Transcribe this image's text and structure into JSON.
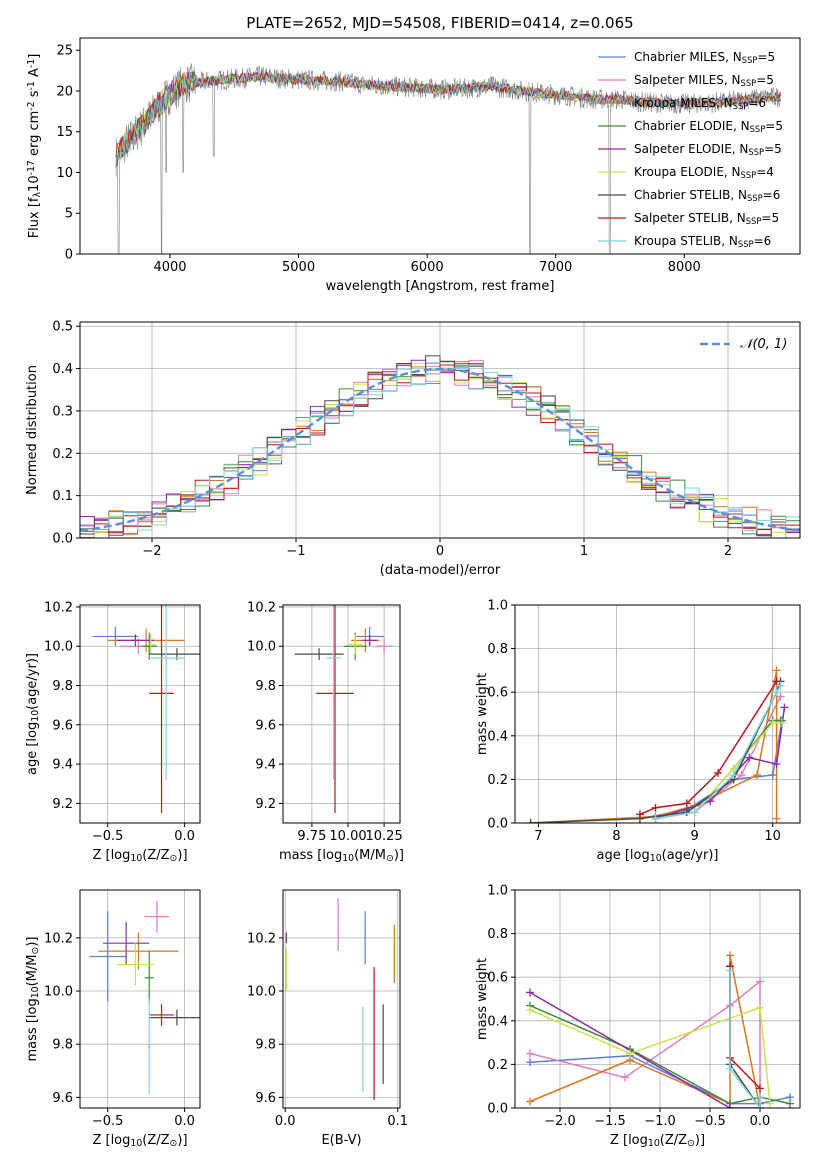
{
  "figure_title": "PLATE=2652, MJD=54508, FIBERID=0414, z=0.065",
  "colors": {
    "chabrier_miles": "#5b7fd6",
    "salpeter_miles": "#e37cbd",
    "kroupa_miles": "#d9771f",
    "chabrier_elodie": "#3d8a3d",
    "salpeter_elodie": "#8e2cae",
    "kroupa_elodie": "#c7e34a",
    "chabrier_stelib": "#4a4a4a",
    "salpeter_stelib": "#c0161c",
    "kroupa_stelib": "#7fd6e0",
    "data": "#808080",
    "normal": "#5b8fd6"
  },
  "chart_data": [
    {
      "id": "spectrum",
      "type": "line",
      "title": "PLATE=2652, MJD=54508, FIBERID=0414, z=0.065",
      "xlabel": "wavelength [Angstrom, rest frame]",
      "ylabel": "Flux [f$_\\lambda$10$^{-17}$ erg cm$^{-2}$ s$^{-1}$ A$^{-1}$]",
      "xlim": [
        3300,
        8900
      ],
      "ylim": [
        0,
        26.5
      ],
      "xticks": [
        4000,
        5000,
        6000,
        7000,
        8000
      ],
      "yticks": [
        0,
        5,
        10,
        15,
        20,
        25
      ],
      "grid": false,
      "legend_position": "top-right",
      "legend": [
        {
          "key": "chabrier_miles",
          "label": "Chabrier MILES, N",
          "sub": "SSP",
          "tail": "=5"
        },
        {
          "key": "salpeter_miles",
          "label": "Salpeter MILES, N",
          "sub": "SSP",
          "tail": "=5"
        },
        {
          "key": "kroupa_miles",
          "label": "Kroupa MILES, N",
          "sub": "SSP",
          "tail": "=6"
        },
        {
          "key": "chabrier_elodie",
          "label": "Chabrier ELODIE, N",
          "sub": "SSP",
          "tail": "=5"
        },
        {
          "key": "salpeter_elodie",
          "label": "Salpeter ELODIE, N",
          "sub": "SSP",
          "tail": "=5"
        },
        {
          "key": "kroupa_elodie",
          "label": "Kroupa ELODIE, N",
          "sub": "SSP",
          "tail": "=4"
        },
        {
          "key": "chabrier_stelib",
          "label": "Chabrier STELIB, N",
          "sub": "SSP",
          "tail": "=6"
        },
        {
          "key": "salpeter_stelib",
          "label": "Salpeter STELIB, N",
          "sub": "SSP",
          "tail": "=5"
        },
        {
          "key": "kroupa_stelib",
          "label": "Kroupa STELIB, N",
          "sub": "SSP",
          "tail": "=6"
        }
      ],
      "continuum": [
        [
          3580,
          12
        ],
        [
          3650,
          13.5
        ],
        [
          3750,
          15
        ],
        [
          3850,
          17
        ],
        [
          3950,
          19
        ],
        [
          4100,
          20.8
        ],
        [
          4300,
          21.2
        ],
        [
          4500,
          21.5
        ],
        [
          4700,
          21.8
        ],
        [
          4900,
          21.5
        ],
        [
          5100,
          21.3
        ],
        [
          5300,
          21.2
        ],
        [
          5500,
          20.8
        ],
        [
          5700,
          20.6
        ],
        [
          5900,
          20.4
        ],
        [
          6100,
          20.2
        ],
        [
          6300,
          20.3
        ],
        [
          6500,
          20.6
        ],
        [
          6700,
          20.1
        ],
        [
          6900,
          19.7
        ],
        [
          7100,
          19.4
        ],
        [
          7300,
          19.0
        ],
        [
          7500,
          19.0
        ],
        [
          7700,
          18.6
        ],
        [
          8000,
          18.4
        ],
        [
          8300,
          18.6
        ],
        [
          8500,
          19.0
        ],
        [
          8750,
          19.3
        ]
      ],
      "dips": [
        [
          3600,
          0
        ],
        [
          3935,
          0
        ],
        [
          3970,
          10
        ],
        [
          4102,
          10
        ],
        [
          4340,
          12
        ],
        [
          6800,
          0
        ],
        [
          7420,
          0
        ]
      ]
    },
    {
      "id": "residuals",
      "type": "histogram",
      "xlabel": "(data-model)/error",
      "ylabel": "Normed distribution",
      "xlim": [
        -2.5,
        2.5
      ],
      "ylim": [
        0,
        0.51
      ],
      "xticks": [
        -2,
        -1,
        0,
        1,
        2
      ],
      "yticks": [
        0.0,
        0.1,
        0.2,
        0.3,
        0.4,
        0.5
      ],
      "grid": true,
      "legend_position": "top-right",
      "normal_label": "𝒩(0, 1)",
      "bin_width": 0.1
    },
    {
      "id": "age_vs_z",
      "type": "scatter",
      "xlabel": "Z [log$_{10}$(Z/Z$_\\odot$)]",
      "ylabel": "age  [log$_{10}$(age/yr)]",
      "xlim": [
        -0.68,
        0.1
      ],
      "ylim": [
        9.1,
        10.21
      ],
      "xticks": [
        -0.5,
        0.0
      ],
      "yticks": [
        9.2,
        9.4,
        9.6,
        9.8,
        10.0,
        10.2
      ],
      "grid": true,
      "points": [
        {
          "key": "chabrier_miles",
          "x": -0.45,
          "y": 10.05,
          "xe": 0.15,
          "ye": 0.05
        },
        {
          "key": "salpeter_miles",
          "x": -0.3,
          "y": 10.0,
          "xe": 0.12,
          "ye": 0.04
        },
        {
          "key": "kroupa_miles",
          "x": -0.25,
          "y": 10.03,
          "xe": 0.25,
          "ye": 0.06
        },
        {
          "key": "chabrier_elodie",
          "x": -0.23,
          "y": 10.0,
          "xe": 0.05,
          "ye": 0.07
        },
        {
          "key": "salpeter_elodie",
          "x": -0.32,
          "y": 10.03,
          "xe": 0.12,
          "ye": 0.03
        },
        {
          "key": "kroupa_elodie",
          "x": -0.22,
          "y": 10.01,
          "xe": 0.03,
          "ye": 0.05
        },
        {
          "key": "chabrier_stelib",
          "x": -0.05,
          "y": 9.96,
          "xe": 0.18,
          "ye": 0.03
        },
        {
          "key": "salpeter_stelib",
          "x": -0.15,
          "y": 9.76,
          "xe": 0.08,
          "ye": 0.61
        },
        {
          "key": "kroupa_stelib",
          "x": -0.12,
          "y": 9.94,
          "xe": 0.12,
          "ye": 0.62
        }
      ]
    },
    {
      "id": "age_vs_mass",
      "type": "scatter",
      "xlabel": "mass [log$_{10}$(M/M$_\\odot$)]",
      "ylabel": "",
      "xlim": [
        9.55,
        10.36
      ],
      "ylim": [
        9.1,
        10.21
      ],
      "xticks": [
        9.75,
        10.0,
        10.25
      ],
      "xticklabels": [
        "9.75",
        "10.00",
        "10.25"
      ],
      "yticks": [
        9.2,
        9.4,
        9.6,
        9.8,
        10.0,
        10.2
      ],
      "grid": true,
      "points": [
        {
          "key": "chabrier_miles",
          "x": 10.15,
          "y": 10.05,
          "xe": 0.1,
          "ye": 0.05
        },
        {
          "key": "salpeter_miles",
          "x": 10.25,
          "y": 10.0,
          "xe": 0.06,
          "ye": 0.04
        },
        {
          "key": "kroupa_miles",
          "x": 10.12,
          "y": 10.03,
          "xe": 0.1,
          "ye": 0.06
        },
        {
          "key": "chabrier_elodie",
          "x": 10.05,
          "y": 10.0,
          "xe": 0.08,
          "ye": 0.07
        },
        {
          "key": "salpeter_elodie",
          "x": 10.15,
          "y": 10.03,
          "xe": 0.05,
          "ye": 0.03
        },
        {
          "key": "kroupa_elodie",
          "x": 10.05,
          "y": 10.01,
          "xe": 0.05,
          "ye": 0.05
        },
        {
          "key": "chabrier_stelib",
          "x": 9.8,
          "y": 9.96,
          "xe": 0.17,
          "ye": 0.03
        },
        {
          "key": "salpeter_stelib",
          "x": 9.91,
          "y": 9.76,
          "xe": 0.13,
          "ye": 0.61
        },
        {
          "key": "kroupa_stelib",
          "x": 9.9,
          "y": 9.94,
          "xe": 0.05,
          "ye": 0.62
        }
      ]
    },
    {
      "id": "mass_weight_vs_age",
      "type": "line",
      "xlabel": "age  [log$_{10}$(age/yr)]",
      "ylabel": "mass weight",
      "xlim": [
        6.7,
        10.35
      ],
      "ylim": [
        0,
        1.0
      ],
      "xticks": [
        7,
        8,
        9,
        10
      ],
      "yticks": [
        0.0,
        0.2,
        0.4,
        0.6,
        0.8,
        1.0
      ],
      "grid": true,
      "series": [
        {
          "key": "chabrier_miles",
          "x": [
            8.3,
            8.9,
            9.5,
            10.0,
            10.12
          ],
          "y": [
            0.02,
            0.06,
            0.2,
            0.22,
            0.47
          ]
        },
        {
          "key": "salpeter_miles",
          "x": [
            8.5,
            9.0,
            9.6,
            10.1
          ],
          "y": [
            0.02,
            0.05,
            0.22,
            0.58
          ]
        },
        {
          "key": "kroupa_miles",
          "x": [
            6.9,
            8.5,
            9.0,
            9.8,
            10.05,
            10.05
          ],
          "y": [
            0.0,
            0.03,
            0.08,
            0.22,
            0.7,
            0.02
          ]
        },
        {
          "key": "chabrier_elodie",
          "x": [
            8.5,
            9.0,
            9.5,
            10.0,
            10.1
          ],
          "y": [
            0.02,
            0.05,
            0.25,
            0.47,
            0.47
          ]
        },
        {
          "key": "salpeter_elodie",
          "x": [
            8.5,
            9.2,
            9.7,
            10.05,
            10.15
          ],
          "y": [
            0.02,
            0.1,
            0.3,
            0.27,
            0.53
          ]
        },
        {
          "key": "kroupa_elodie",
          "x": [
            8.5,
            9.0,
            9.5,
            10.0,
            10.12
          ],
          "y": [
            0.02,
            0.05,
            0.25,
            0.46,
            0.46
          ]
        },
        {
          "key": "chabrier_stelib",
          "x": [
            6.9,
            8.3,
            8.9,
            9.5,
            10.05,
            10.1
          ],
          "y": [
            0.0,
            0.02,
            0.05,
            0.2,
            0.6,
            0.65
          ]
        },
        {
          "key": "salpeter_stelib",
          "x": [
            8.3,
            8.5,
            8.9,
            9.3,
            10.05
          ],
          "y": [
            0.04,
            0.07,
            0.09,
            0.23,
            0.65
          ]
        },
        {
          "key": "kroupa_stelib",
          "x": [
            8.5,
            9.0,
            9.5,
            10.05,
            10.1
          ],
          "y": [
            0.02,
            0.05,
            0.22,
            0.6,
            0.63
          ]
        }
      ]
    },
    {
      "id": "mass_vs_z",
      "type": "scatter",
      "xlabel": "Z [log$_{10}$(Z/Z$_\\odot$)]",
      "ylabel": "mass [log$_{10}$(M/M$_\\odot$)]",
      "xlim": [
        -0.68,
        0.1
      ],
      "ylim": [
        9.56,
        10.38
      ],
      "xticks": [
        -0.5,
        0.0
      ],
      "yticks": [
        9.6,
        9.8,
        10.0,
        10.2
      ],
      "grid": true,
      "points": [
        {
          "key": "chabrier_miles",
          "x": -0.5,
          "y": 10.13,
          "xe": 0.12,
          "ye": 0.17
        },
        {
          "key": "salpeter_miles",
          "x": -0.18,
          "y": 10.28,
          "xe": 0.08,
          "ye": 0.06
        },
        {
          "key": "kroupa_miles",
          "x": -0.3,
          "y": 10.15,
          "xe": 0.26,
          "ye": 0.07
        },
        {
          "key": "chabrier_elodie",
          "x": -0.23,
          "y": 10.05,
          "xe": 0.03,
          "ye": 0.1
        },
        {
          "key": "salpeter_elodie",
          "x": -0.38,
          "y": 10.18,
          "xe": 0.15,
          "ye": 0.08
        },
        {
          "key": "kroupa_elodie",
          "x": -0.32,
          "y": 10.1,
          "xe": 0.12,
          "ye": 0.08
        },
        {
          "key": "chabrier_stelib",
          "x": -0.05,
          "y": 9.9,
          "xe": 0.18,
          "ye": 0.03
        },
        {
          "key": "salpeter_stelib",
          "x": -0.15,
          "y": 9.91,
          "xe": 0.08,
          "ye": 0.04
        },
        {
          "key": "kroupa_stelib",
          "x": -0.23,
          "y": 9.79,
          "xe": 0.01,
          "ye": 0.18
        }
      ]
    },
    {
      "id": "mass_vs_ebv",
      "type": "scatter",
      "xlabel": "E(B-V)",
      "ylabel": "",
      "xlim": [
        -0.002,
        0.102
      ],
      "ylim": [
        9.56,
        10.38
      ],
      "xticks": [
        0.0,
        0.1
      ],
      "yticks": [
        9.6,
        9.8,
        10.0,
        10.2
      ],
      "grid": true,
      "points": [
        {
          "key": "chabrier_miles",
          "x": 0.071,
          "y": 10.2,
          "xe": 0,
          "ye": 0.1
        },
        {
          "key": "salpeter_miles",
          "x": 0.047,
          "y": 10.25,
          "xe": 0,
          "ye": 0.1
        },
        {
          "key": "kroupa_miles",
          "x": 0.097,
          "y": 10.14,
          "xe": 0,
          "ye": 0.11
        },
        {
          "key": "kroupa_elodie",
          "x": 0.001,
          "y": 10.08,
          "xe": 0,
          "ye": 0.08
        },
        {
          "key": "salpeter_elodie",
          "x": 0.001,
          "y": 10.2,
          "xe": 0,
          "ye": 0.02
        },
        {
          "key": "chabrier_stelib",
          "x": 0.087,
          "y": 9.8,
          "xe": 0,
          "ye": 0.15
        },
        {
          "key": "salpeter_stelib",
          "x": 0.079,
          "y": 9.84,
          "xe": 0,
          "ye": 0.25
        },
        {
          "key": "kroupa_stelib",
          "x": 0.069,
          "y": 9.78,
          "xe": 0,
          "ye": 0.16
        }
      ]
    },
    {
      "id": "mass_weight_vs_z",
      "type": "line",
      "xlabel": "Z [log$_{10}$(Z/Z$_\\odot$)]",
      "ylabel": "mass weight",
      "xlim": [
        -2.45,
        0.4
      ],
      "ylim": [
        0,
        1.0
      ],
      "xticks": [
        -2.0,
        -1.5,
        -1.0,
        -0.5,
        0.0
      ],
      "xticklabels": [
        "−2.0",
        "−1.5",
        "−1.0",
        "−0.5",
        "0.0"
      ],
      "yticks": [
        0.0,
        0.2,
        0.4,
        0.6,
        0.8,
        1.0
      ],
      "grid": true,
      "series": [
        {
          "key": "chabrier_miles",
          "x": [
            -2.3,
            -1.3,
            -0.3,
            0.0,
            0.3
          ],
          "y": [
            0.21,
            0.24,
            0.02,
            0.02,
            0.05
          ]
        },
        {
          "key": "salpeter_miles",
          "x": [
            -2.3,
            -1.35,
            -0.3,
            0.0,
            0.0
          ],
          "y": [
            0.25,
            0.14,
            0.47,
            0.58,
            0.0
          ]
        },
        {
          "key": "kroupa_miles",
          "x": [
            -2.3,
            -1.3,
            -0.3,
            -0.3,
            0.0
          ],
          "y": [
            0.03,
            0.22,
            0.02,
            0.7,
            0.0
          ]
        },
        {
          "key": "chabrier_elodie",
          "x": [
            -2.3,
            -1.3,
            -0.3,
            0.0,
            0.3
          ],
          "y": [
            0.47,
            0.27,
            0.02,
            0.05,
            0.02
          ]
        },
        {
          "key": "salpeter_elodie",
          "x": [
            -2.3,
            -0.3,
            0.0
          ],
          "y": [
            0.53,
            0.0,
            0.0
          ]
        },
        {
          "key": "kroupa_elodie",
          "x": [
            -2.3,
            -1.3,
            0.0,
            0.1
          ],
          "y": [
            0.45,
            0.25,
            0.46,
            0.02
          ]
        },
        {
          "key": "chabrier_stelib",
          "x": [
            -0.3,
            -0.3,
            0.0
          ],
          "y": [
            0.65,
            0.2,
            0.0
          ]
        },
        {
          "key": "salpeter_stelib",
          "x": [
            -0.3,
            -0.3,
            0.0
          ],
          "y": [
            0.65,
            0.23,
            0.09
          ]
        },
        {
          "key": "kroupa_stelib",
          "x": [
            -0.3,
            -0.3,
            0.0,
            0.0
          ],
          "y": [
            0.63,
            0.18,
            0.0,
            0.05
          ]
        }
      ]
    }
  ]
}
